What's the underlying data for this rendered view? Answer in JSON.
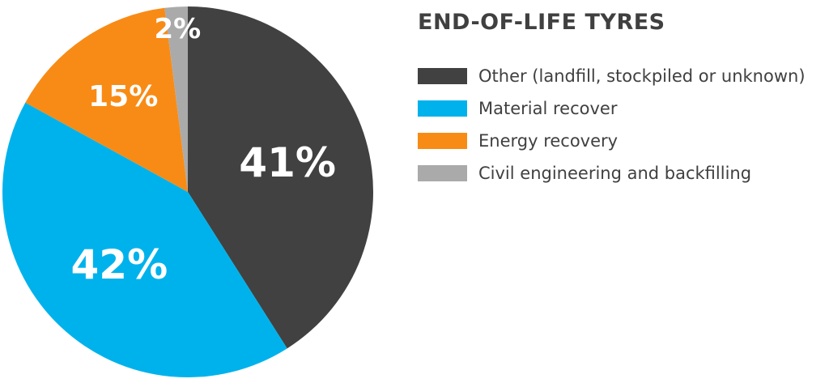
{
  "chart_data": {
    "type": "pie",
    "title": "END-OF-LIFE TYRES",
    "slices": [
      {
        "name": "Other (landfill, stockpiled or unknown)",
        "value": 41,
        "label": "41%",
        "color": "#414141"
      },
      {
        "name": "Material recover",
        "value": 42,
        "label": "42%",
        "color": "#00b2ec"
      },
      {
        "name": "Energy recovery",
        "value": 15,
        "label": "15%",
        "color": "#f88b15"
      },
      {
        "name": "Civil engineering and backfilling",
        "value": 2,
        "label": "2%",
        "color": "#abaaaa"
      }
    ],
    "legend_position": "right"
  }
}
